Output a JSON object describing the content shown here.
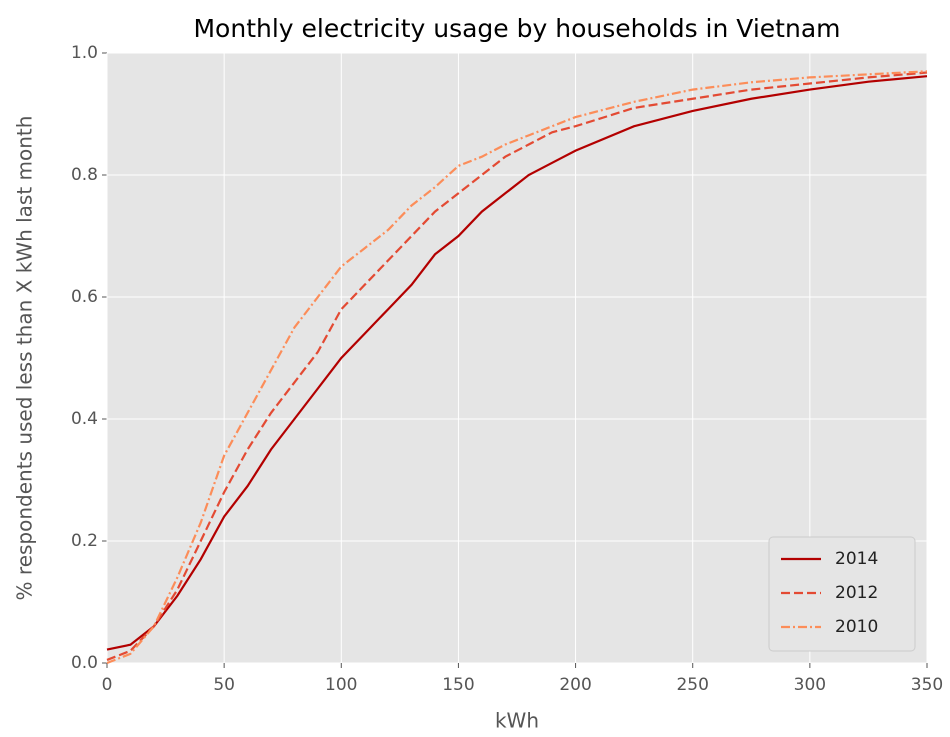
{
  "chart_data": {
    "type": "line",
    "title": "Monthly electricity usage by households in Vietnam",
    "xlabel": "kWh",
    "ylabel": "% respondents used less than X kWh last month",
    "x": [
      0,
      10,
      20,
      30,
      40,
      50,
      60,
      70,
      80,
      90,
      100,
      110,
      120,
      130,
      140,
      150,
      160,
      170,
      180,
      190,
      200,
      225,
      250,
      275,
      300,
      325,
      350
    ],
    "series": [
      {
        "name": "2014",
        "color": "#b30000",
        "linestyle": "solid",
        "values": [
          0.022,
          0.03,
          0.06,
          0.11,
          0.17,
          0.24,
          0.29,
          0.35,
          0.4,
          0.45,
          0.5,
          0.54,
          0.58,
          0.62,
          0.67,
          0.7,
          0.74,
          0.77,
          0.8,
          0.82,
          0.84,
          0.88,
          0.905,
          0.925,
          0.94,
          0.953,
          0.962
        ]
      },
      {
        "name": "2012",
        "color": "#e34a33",
        "linestyle": "dashed",
        "values": [
          0.005,
          0.02,
          0.06,
          0.12,
          0.2,
          0.28,
          0.35,
          0.41,
          0.46,
          0.51,
          0.58,
          0.62,
          0.66,
          0.7,
          0.74,
          0.77,
          0.8,
          0.83,
          0.85,
          0.87,
          0.88,
          0.91,
          0.925,
          0.94,
          0.95,
          0.96,
          0.968
        ]
      },
      {
        "name": "2010",
        "color": "#fc8d59",
        "linestyle": "dashdot",
        "values": [
          0.0,
          0.015,
          0.06,
          0.14,
          0.23,
          0.34,
          0.41,
          0.48,
          0.55,
          0.6,
          0.65,
          0.68,
          0.71,
          0.75,
          0.78,
          0.815,
          0.83,
          0.85,
          0.865,
          0.88,
          0.895,
          0.92,
          0.94,
          0.952,
          0.96,
          0.965,
          0.97
        ]
      }
    ],
    "xlim": [
      0,
      350
    ],
    "xticks": [
      0,
      50,
      100,
      150,
      200,
      250,
      300,
      350
    ],
    "ylim": [
      0,
      1
    ],
    "yticks": [
      {
        "value": 0,
        "label": "0.0"
      },
      0.2,
      0.4,
      0.6,
      0.8,
      {
        "value": 1,
        "label": "1.0"
      }
    ],
    "grid": true,
    "legend": "lower right"
  }
}
